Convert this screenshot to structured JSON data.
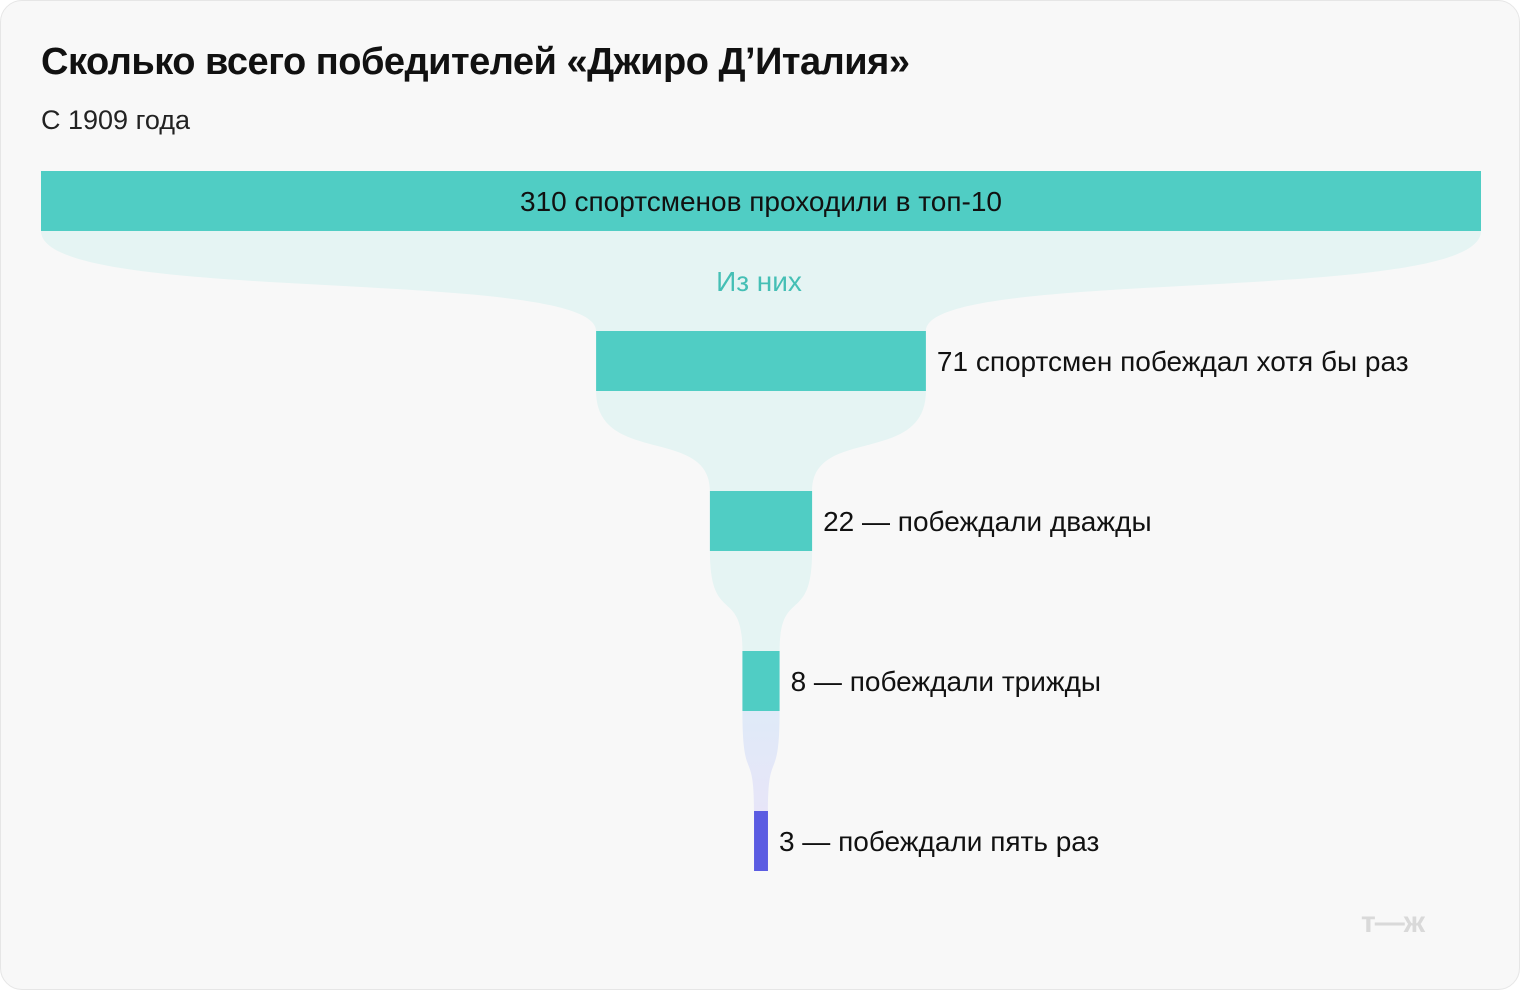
{
  "header": {
    "title": "Сколько всего победителей «Джиро Д’Италия»",
    "subtitle": "С 1909 года"
  },
  "chart_data": {
    "type": "funnel",
    "title": "Сколько всего победителей «Джиро Д’Италия»",
    "subtitle": "С 1909 года",
    "annotation": "Из них",
    "stages": [
      {
        "value": 310,
        "label": "310 спортсменов проходили в топ-10",
        "label_position": "inside"
      },
      {
        "value": 71,
        "label": "71 спортсмен побеждал хотя бы раз",
        "label_position": "right"
      },
      {
        "value": 22,
        "label": "22 — побеждали дважды",
        "label_position": "right"
      },
      {
        "value": 8,
        "label": "8 — побеждали трижды",
        "label_position": "right"
      },
      {
        "value": 3,
        "label": "3 — побеждали пять раз",
        "label_position": "right"
      }
    ],
    "colors": {
      "bar": "#50cdc4",
      "last_bar": "#5b5ce2",
      "connector": "#e5f4f3",
      "annotation": "#45bfb5"
    }
  },
  "logo": "т—ж"
}
